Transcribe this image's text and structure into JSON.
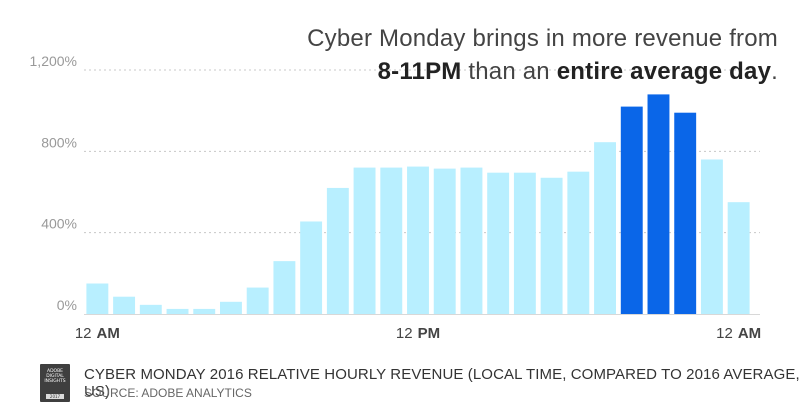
{
  "headline": {
    "line1": "Cyber Monday brings in more revenue from",
    "line2_bold1": "8-11PM",
    "line2_mid": " than an ",
    "line2_bold2": "entire average day",
    "line2_end": "."
  },
  "badge": {
    "line1": "ADOBE",
    "line2": "DIGITAL",
    "line3": "INSIGHTS",
    "year": "2017"
  },
  "footer": {
    "title": "CYBER MONDAY 2016 RELATIVE HOURLY REVENUE (LOCAL TIME, COMPARED TO 2016 AVERAGE, US)",
    "source": "SOURCE: ADOBE ANALYTICS"
  },
  "chart_data": {
    "type": "bar",
    "title": "CYBER MONDAY 2016 RELATIVE HOURLY REVENUE (LOCAL TIME, COMPARED TO 2016 AVERAGE, US)",
    "xlabel": "",
    "ylabel": "",
    "ylim": [
      0,
      1200
    ],
    "y_ticks": [
      {
        "value": 0,
        "label": "0%"
      },
      {
        "value": 400,
        "label": "400%"
      },
      {
        "value": 800,
        "label": "800%"
      },
      {
        "value": 1200,
        "label": "1,200%"
      }
    ],
    "x_tick_labels": [
      {
        "index": 0,
        "num": "12",
        "suffix": "AM"
      },
      {
        "index": 12,
        "num": "12",
        "suffix": "PM"
      },
      {
        "index": 24,
        "num": "12",
        "suffix": "AM"
      }
    ],
    "values": [
      150,
      85,
      45,
      25,
      25,
      60,
      130,
      260,
      455,
      620,
      720,
      720,
      725,
      715,
      720,
      695,
      695,
      670,
      700,
      845,
      1020,
      1080,
      990,
      760,
      550
    ],
    "highlight_indices": [
      20,
      21,
      22
    ],
    "colors": {
      "bar": "#b8efff",
      "highlight": "#0a66e8",
      "grid": "#c8c8c8",
      "tick_text": "#999999",
      "axis_label": "#444444"
    },
    "grid": true
  }
}
